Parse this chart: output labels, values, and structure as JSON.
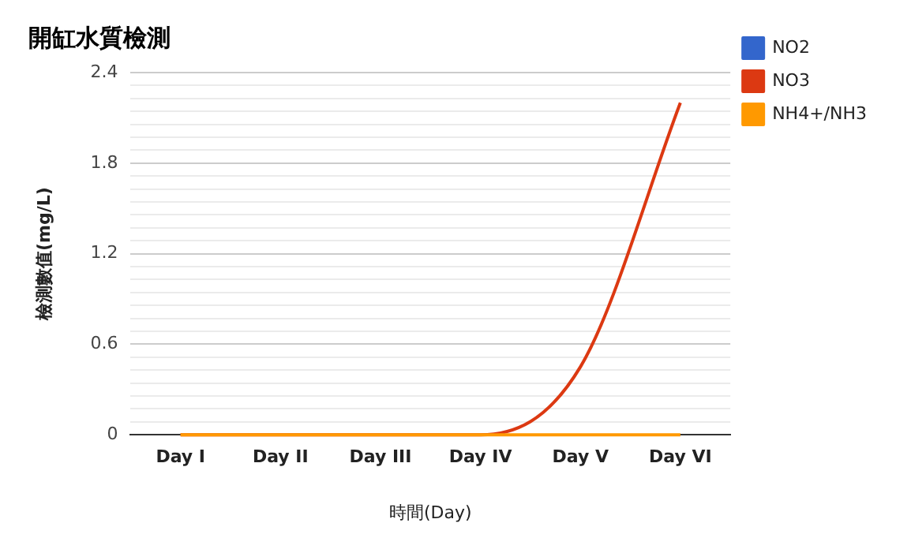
{
  "chart_data": {
    "type": "line",
    "title": "開缸水質檢測",
    "xlabel": "時間(Day)",
    "ylabel": "檢測數值(mg/L)",
    "categories": [
      "Day I",
      "Day II",
      "Day III",
      "Day IV",
      "Day V",
      "Day VI"
    ],
    "series": [
      {
        "name": "NO2",
        "color": "#3366cc",
        "values": [
          null,
          null,
          null,
          null,
          null,
          null
        ]
      },
      {
        "name": "NO3",
        "color": "#dc3912",
        "values": [
          0,
          0,
          0,
          0,
          0.45,
          2.2
        ]
      },
      {
        "name": "NH4+/NH3",
        "color": "#ff9900",
        "values": [
          0,
          0,
          0,
          0,
          0,
          0
        ]
      }
    ],
    "ylim": [
      0,
      2.4
    ],
    "yticks": [
      0,
      {
        "value": 0.086,
        "label": null
      },
      {
        "value": 0.171,
        "label": null
      },
      {
        "value": 0.257,
        "label": null
      },
      {
        "value": 0.343,
        "label": null
      },
      {
        "value": 0.429,
        "label": null
      },
      {
        "value": 0.514,
        "label": null
      },
      0.6,
      {
        "value": 0.686,
        "label": null
      },
      {
        "value": 0.771,
        "label": null
      },
      {
        "value": 0.857,
        "label": null
      },
      {
        "value": 0.943,
        "label": null
      },
      {
        "value": 1.029,
        "label": null
      },
      {
        "value": 1.114,
        "label": null
      },
      1.2,
      {
        "value": 1.286,
        "label": null
      },
      {
        "value": 1.371,
        "label": null
      },
      {
        "value": 1.457,
        "label": null
      },
      {
        "value": 1.543,
        "label": null
      },
      {
        "value": 1.629,
        "label": null
      },
      {
        "value": 1.714,
        "label": null
      },
      1.8,
      {
        "value": 1.886,
        "label": null
      },
      {
        "value": 1.971,
        "label": null
      },
      {
        "value": 2.057,
        "label": null
      },
      {
        "value": 2.143,
        "label": null
      },
      {
        "value": 2.229,
        "label": null
      },
      {
        "value": 2.314,
        "label": null
      },
      2.4
    ],
    "grid": "y",
    "legend": "right",
    "marker": "none",
    "line_style": "solid"
  }
}
